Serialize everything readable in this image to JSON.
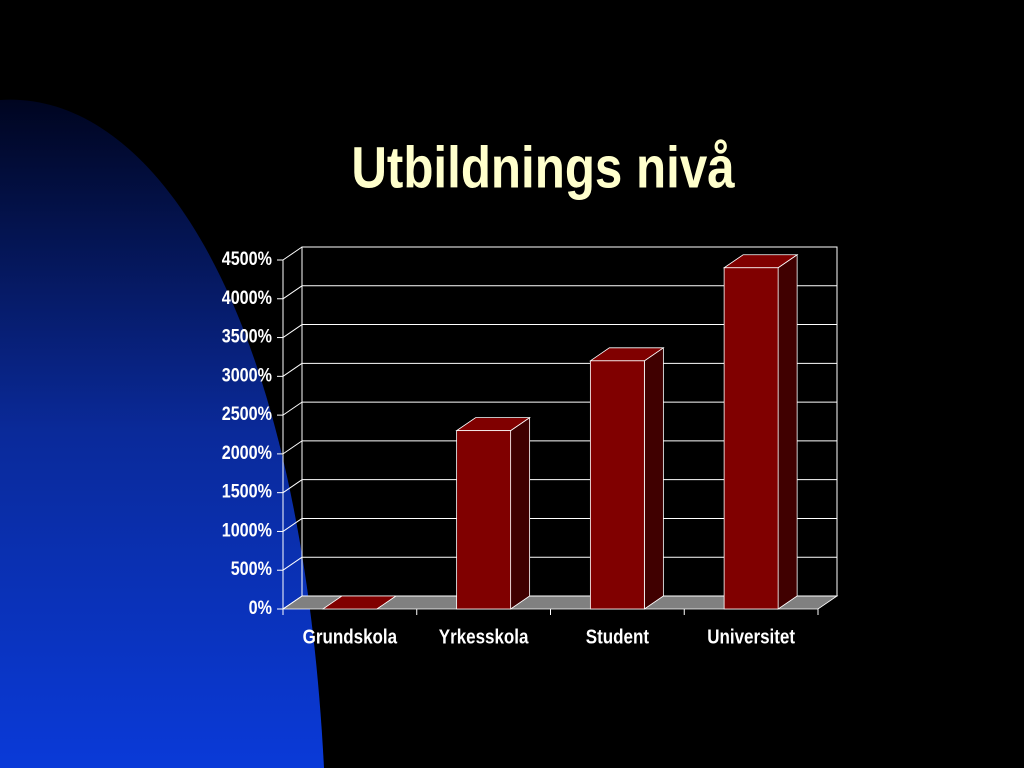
{
  "chart_data": {
    "type": "bar3d",
    "title": "Utbildnings nivå",
    "categories": [
      "Grundskola",
      "Yrkesskola",
      "Student",
      "Universitet"
    ],
    "values": [
      0,
      2300,
      3200,
      4400
    ],
    "color": "#800000",
    "ylim": [
      0,
      4500
    ],
    "yticks": [
      {
        "value": 0,
        "label": "0%"
      },
      {
        "value": 500,
        "label": "500%"
      },
      {
        "value": 1000,
        "label": "1000%"
      },
      {
        "value": 1500,
        "label": "1500%"
      },
      {
        "value": 2000,
        "label": "2000%"
      },
      {
        "value": 2500,
        "label": "2500%"
      },
      {
        "value": 3000,
        "label": "3000%"
      },
      {
        "value": 3500,
        "label": "3500%"
      },
      {
        "value": 4000,
        "label": "4000%"
      },
      {
        "value": 4500,
        "label": "4500%"
      }
    ],
    "grid": true
  }
}
